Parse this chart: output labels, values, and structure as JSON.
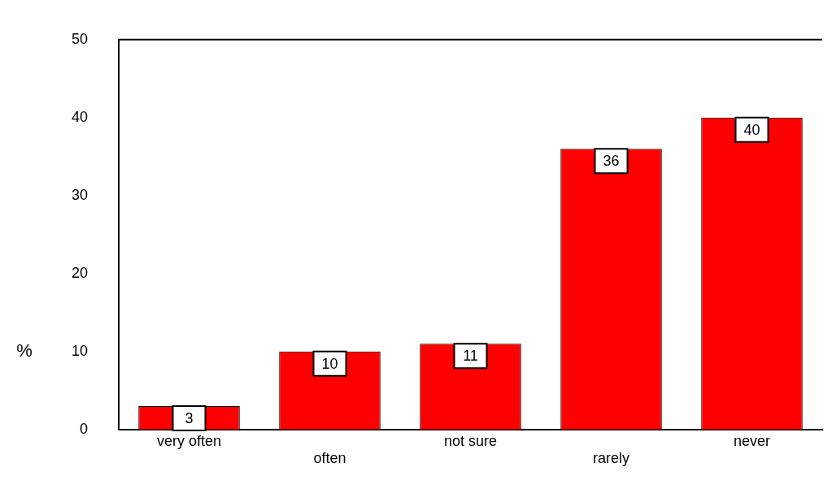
{
  "chart_data": {
    "type": "bar",
    "ylabel": "%",
    "categories": [
      "very often",
      "often",
      "not sure",
      "rarely",
      "never"
    ],
    "values": [
      3,
      10,
      11,
      36,
      40
    ],
    "color": "#ff0000",
    "ylim": [
      0,
      50
    ],
    "yticks": [
      0,
      10,
      20,
      30,
      40,
      50
    ],
    "grid": false,
    "legend": false,
    "data_labels": true
  }
}
